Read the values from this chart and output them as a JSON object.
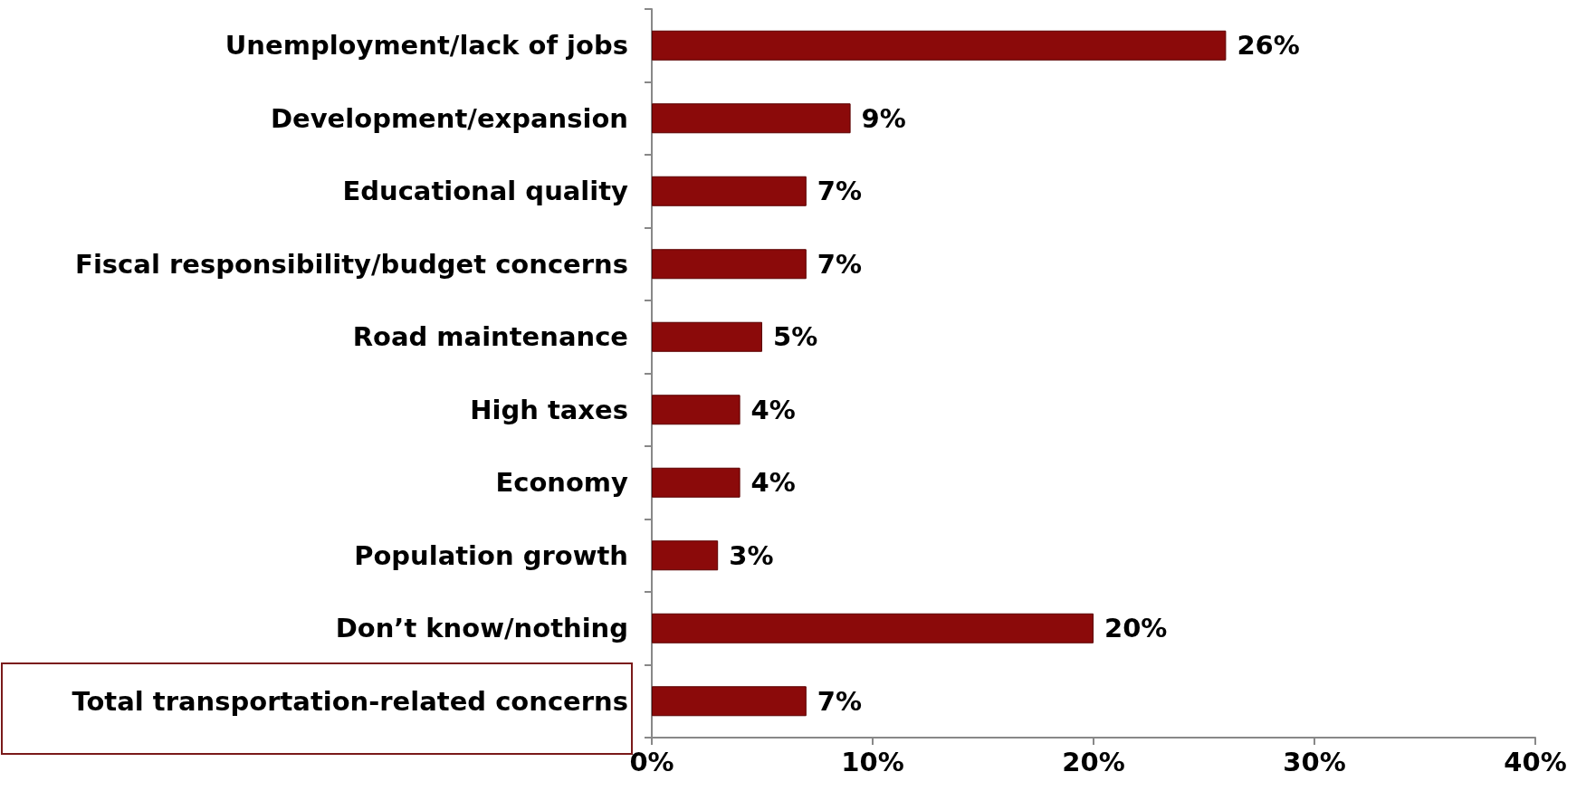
{
  "chart_data": {
    "type": "bar",
    "orientation": "horizontal",
    "categories": [
      "Unemployment/lack of jobs",
      "Development/expansion",
      "Educational quality",
      "Fiscal responsibility/budget concerns",
      "Road maintenance",
      "High taxes",
      "Economy",
      "Population growth",
      "Don’t know/nothing",
      "Total transportation-related concerns"
    ],
    "values": [
      26,
      9,
      7,
      7,
      5,
      4,
      4,
      3,
      20,
      7
    ],
    "value_labels": [
      "26%",
      "9%",
      "7%",
      "7%",
      "5%",
      "4%",
      "4%",
      "3%",
      "20%",
      "7%"
    ],
    "color": "#8b0a0a",
    "xlim": [
      0,
      40
    ],
    "xticks": [
      {
        "value": 0,
        "label": "0%"
      },
      {
        "value": 10,
        "label": "10%"
      },
      {
        "value": 20,
        "label": "20%"
      },
      {
        "value": 30,
        "label": "30%"
      },
      {
        "value": 40,
        "label": "40%"
      }
    ],
    "grid": false
  }
}
